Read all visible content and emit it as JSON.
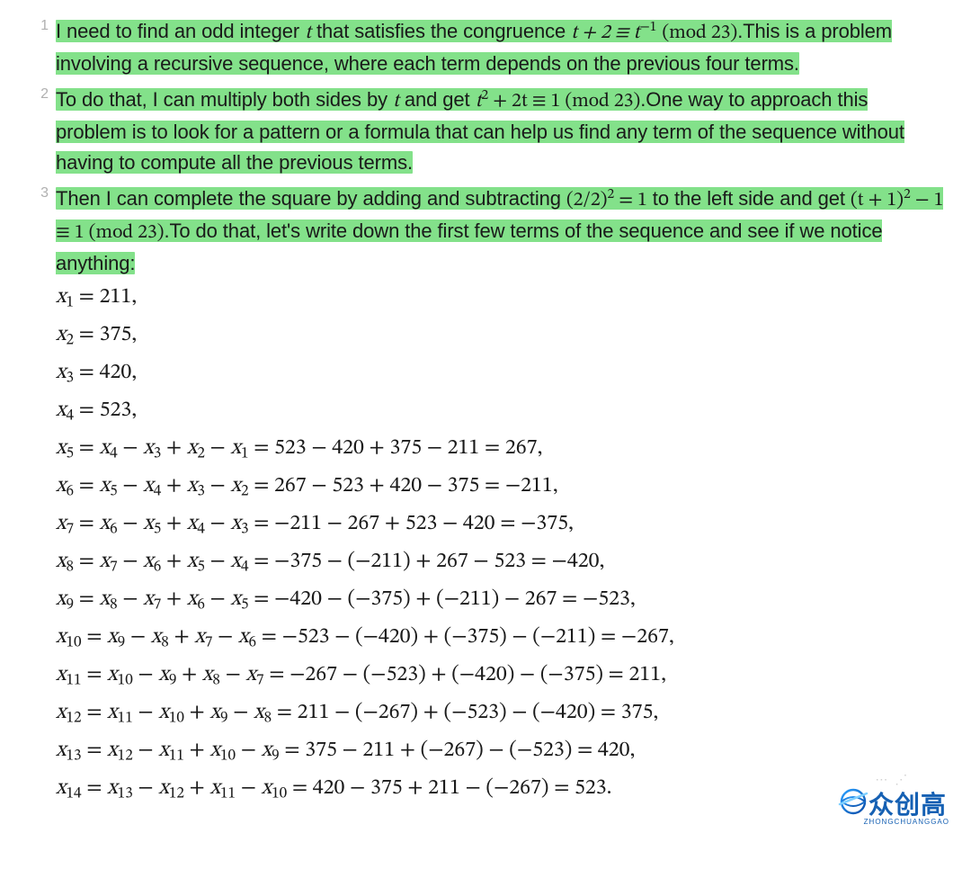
{
  "highlight_color": "#83e18a",
  "text_color": "#1a1a1a",
  "num_color": "#b0b0b0",
  "items": [
    {
      "n": "1",
      "pre": "I need to find an odd integer ",
      "mid1": " that satisfies the congruence ",
      "tail": ".This is a problem involving a recursive sequence, where each term depends on the previous four terms."
    },
    {
      "n": "2",
      "pre": "To do that, I can multiply both sides by ",
      "mid1": " and get ",
      "tail": ".One way to approach this problem is to look for a pattern or a formula that can help us find any term of the sequence without having to compute all the previous terms."
    },
    {
      "n": "3",
      "pre": "Then I can complete the square by adding and subtracting ",
      "mid1": " to the left side and get ",
      "tail": ".To do that, let's write down the first few terms of the sequence and see if we notice anything:"
    }
  ],
  "formulas": {
    "t": "t",
    "cong1a": "t + 2 ≡ t",
    "cong1b": "(mod 23)",
    "cong2": "t",
    "cong2b": " + 2t ≡ 1 (mod 23)",
    "sq": "(2/2)",
    "sqeq": " = 1",
    "cong3a": "(t + 1)",
    "cong3b": " − 1 ≡ 1 (mod 23)"
  },
  "equations": [
    "x₁ = 211,",
    "x₂ = 375,",
    "x₃ = 420,",
    "x₄ = 523,",
    "x₅ = x₄ − x₃ + x₂ − x₁ = 523 − 420 + 375 − 211 = 267,",
    "x₆ = x₅ − x₄ + x₃ − x₂ = 267 − 523 + 420 − 375 = −211,",
    "x₇ = x₆ − x₅ + x₄ − x₃ = −211 − 267 + 523 − 420 = −375,",
    "x₈ = x₇ − x₆ + x₅ − x₄ = −375 − (−211) + 267 − 523 = −420,",
    "x₉ = x₈ − x₇ + x₆ − x₅ = −420 − (−375) + (−211) − 267 = −523,",
    "x₁₀ = x₉ − x₈ + x₇ − x₆ = −523 − (−420) + (−375) − (−211) = −267,",
    "x₁₁ = x₁₀ − x₉ + x₈ − x₇ = −267 − (−523) + (−420) − (−375) = 211,",
    "x₁₂ = x₁₁ − x₁₀ + x₉ − x₈ = 211 − (−267) + (−523) − (−420) = 375,",
    "x₁₃ = x₁₂ − x₁₁ + x₁₀ − x₉ = 375 − 211 + (−267) − (−523) = 420,",
    "x₁₄ = x₁₃ − x₁₂ + x₁₁ − x₁₀ = 420 − 375 + 211 − (−267) = 523."
  ],
  "eq_rows": [
    {
      "sub": "1",
      "body": " = 211,"
    },
    {
      "sub": "2",
      "body": " = 375,"
    },
    {
      "sub": "3",
      "body": " = 420,"
    },
    {
      "sub": "4",
      "body": " = 523,"
    },
    {
      "sub": "5",
      "rhs_subs": [
        "4",
        "3",
        "2",
        "1"
      ],
      "calc": " = 523 − 420 + 375 − 211 = 267,"
    },
    {
      "sub": "6",
      "rhs_subs": [
        "5",
        "4",
        "3",
        "2"
      ],
      "calc": " = 267 − 523 + 420 − 375 = −211,"
    },
    {
      "sub": "7",
      "rhs_subs": [
        "6",
        "5",
        "4",
        "3"
      ],
      "calc": " = −211 − 267 + 523 − 420 = −375,"
    },
    {
      "sub": "8",
      "rhs_subs": [
        "7",
        "6",
        "5",
        "4"
      ],
      "calc": " = −375 − (−211) + 267 − 523 = −420,"
    },
    {
      "sub": "9",
      "rhs_subs": [
        "8",
        "7",
        "6",
        "5"
      ],
      "calc": " = −420 − (−375) + (−211) − 267 = −523,"
    },
    {
      "sub": "10",
      "rhs_subs": [
        "9",
        "8",
        "7",
        "6"
      ],
      "calc": " = −523 − (−420) + (−375) − (−211) = −267,"
    },
    {
      "sub": "11",
      "rhs_subs": [
        "10",
        "9",
        "8",
        "7"
      ],
      "calc": " = −267 − (−523) + (−420) − (−375) = 211,"
    },
    {
      "sub": "12",
      "rhs_subs": [
        "11",
        "10",
        "9",
        "8"
      ],
      "calc": " = 211 − (−267) + (−523) − (−420) = 375,"
    },
    {
      "sub": "13",
      "rhs_subs": [
        "12",
        "11",
        "10",
        "9"
      ],
      "calc": " = 375 − 211 + (−267) − (−523) = 420,"
    },
    {
      "sub": "14",
      "rhs_subs": [
        "13",
        "12",
        "11",
        "10"
      ],
      "calc": " = 420 − 375 + 211 − (−267) = 523."
    }
  ],
  "logo": {
    "dots": "⋯ ⋰",
    "text": "众创高",
    "sub": "ZHONGCHUANGGAO"
  }
}
